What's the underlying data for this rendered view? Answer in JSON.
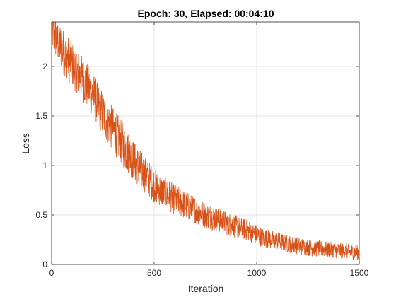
{
  "chart_data": {
    "type": "line",
    "title": "Epoch: 30, Elapsed: 00:04:10",
    "xlabel": "Iteration",
    "ylabel": "Loss",
    "xlim": [
      0,
      1500
    ],
    "ylim": [
      0,
      2.45
    ],
    "xticks": [
      0,
      500,
      1000,
      1500
    ],
    "xtick_labels": [
      "0",
      "500",
      "1000",
      "1500"
    ],
    "yticks": [
      0,
      0.5,
      1,
      1.5,
      2
    ],
    "ytick_labels": [
      "0",
      "0.5",
      "1",
      "1.5",
      "2"
    ],
    "grid": true,
    "legend": "none",
    "series": [
      {
        "color": "#d95319",
        "x": [
          0,
          5,
          10,
          20,
          30,
          40,
          50,
          60,
          80,
          100,
          125,
          150,
          175,
          200,
          225,
          250,
          275,
          300,
          325,
          350,
          375,
          400,
          425,
          450,
          475,
          500,
          550,
          600,
          650,
          700,
          750,
          800,
          850,
          900,
          950,
          1000,
          1050,
          1100,
          1150,
          1200,
          1250,
          1300,
          1350,
          1400,
          1450,
          1500
        ],
        "y": [
          2.4,
          2.38,
          2.34,
          2.3,
          2.26,
          2.22,
          2.18,
          2.14,
          2.08,
          2.02,
          1.95,
          1.88,
          1.8,
          1.72,
          1.62,
          1.52,
          1.44,
          1.36,
          1.28,
          1.2,
          1.12,
          1.05,
          0.98,
          0.92,
          0.86,
          0.8,
          0.72,
          0.66,
          0.6,
          0.55,
          0.5,
          0.46,
          0.42,
          0.38,
          0.35,
          0.3,
          0.26,
          0.24,
          0.21,
          0.19,
          0.17,
          0.16,
          0.15,
          0.14,
          0.13,
          0.12
        ]
      }
    ]
  }
}
